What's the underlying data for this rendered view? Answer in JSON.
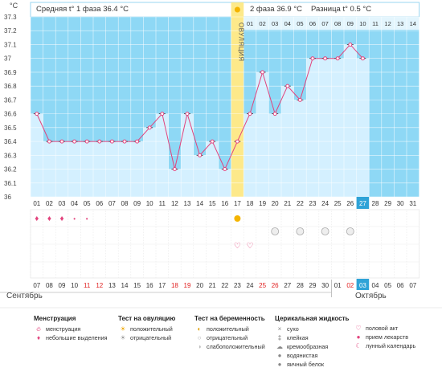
{
  "header": {
    "unit": "°C",
    "phase1_avg": "Средняя t° 1 фаза 36.4 °C",
    "phase2_avg": "2 фаза 36.9 °C",
    "difference": "Разница t° 0.5 °C",
    "ovulation_label": "ОВУЛЯЦИЯ"
  },
  "chart_data": {
    "type": "line",
    "y_ticks": [
      "37.3",
      "37.2",
      "37.1",
      "37",
      "36.9",
      "36.8",
      "36.7",
      "36.6",
      "36.5",
      "36.4",
      "36.3",
      "36.2",
      "36.1",
      "36"
    ],
    "ylim": [
      36,
      37.3
    ],
    "cycle_days": [
      "01",
      "02",
      "03",
      "04",
      "05",
      "06",
      "07",
      "08",
      "09",
      "10",
      "11",
      "12",
      "13",
      "14",
      "15",
      "16",
      "17",
      "18",
      "19",
      "20",
      "21",
      "22",
      "23",
      "24",
      "25",
      "26",
      "27",
      "28",
      "29",
      "30",
      "31"
    ],
    "phase2_days": [
      "01",
      "02",
      "03",
      "04",
      "05",
      "06",
      "07",
      "08",
      "09",
      "10",
      "11",
      "12",
      "13",
      "14"
    ],
    "x": [
      1,
      2,
      3,
      4,
      5,
      6,
      7,
      8,
      9,
      10,
      11,
      12,
      13,
      14,
      15,
      16,
      17,
      18,
      19,
      20,
      21,
      22,
      23,
      24,
      25,
      26,
      27
    ],
    "values": [
      36.6,
      36.4,
      36.4,
      36.4,
      36.4,
      36.4,
      36.4,
      36.4,
      36.4,
      36.5,
      36.6,
      36.2,
      36.6,
      36.3,
      36.4,
      36.2,
      36.4,
      36.6,
      36.9,
      36.6,
      36.8,
      36.7,
      37.0,
      37.0,
      37.0,
      37.1,
      37.0
    ],
    "ovulation_day": 17,
    "current_day": 27,
    "calendar_dates": [
      "07",
      "08",
      "09",
      "10",
      "11",
      "12",
      "13",
      "14",
      "15",
      "16",
      "17",
      "18",
      "19",
      "20",
      "21",
      "22",
      "23",
      "24",
      "25",
      "26",
      "27",
      "28",
      "29",
      "30",
      "01",
      "02",
      "03",
      "04",
      "05",
      "06",
      "07"
    ],
    "weekend_dates": [
      4,
      5,
      11,
      12,
      18,
      19,
      25,
      26
    ],
    "today_date_index": 27,
    "month_left": "Сентябрь",
    "month_right": "Октябрь"
  },
  "markers": {
    "menstruation_days": [
      1,
      2,
      3
    ],
    "spotting_days": [
      4,
      5
    ],
    "ovulation_test_days": [
      17
    ],
    "intercourse_days": [
      17,
      18
    ],
    "cervical_fluid_days": [
      20,
      22,
      24,
      26
    ]
  },
  "colors": {
    "chart_bg": "#8ed8f5",
    "bar_fill": "#d4f0ff",
    "line": "#e2437d",
    "ovulation": "#fde98a",
    "accent": "#2fa3d7",
    "weekend": "#e01d1d"
  },
  "legend": {
    "menstruation": {
      "title": "Менструация",
      "items": [
        "менструация",
        "небольшие выделения"
      ]
    },
    "ovulation_test": {
      "title": "Тест на овуляцию",
      "items": [
        "положительный",
        "отрицательный"
      ]
    },
    "pregnancy_test": {
      "title": "Тест на беременность",
      "items": [
        "положительный",
        "отрицательный",
        "слабоположительный"
      ]
    },
    "cervical": {
      "title": "Церикальная жидкость",
      "items": [
        "сухо",
        "клейкая",
        "кремообразная",
        "водянистая",
        "яичный белок"
      ]
    },
    "other": {
      "items": [
        "половой акт",
        "прием лекарств",
        "лунный календарь"
      ]
    }
  }
}
